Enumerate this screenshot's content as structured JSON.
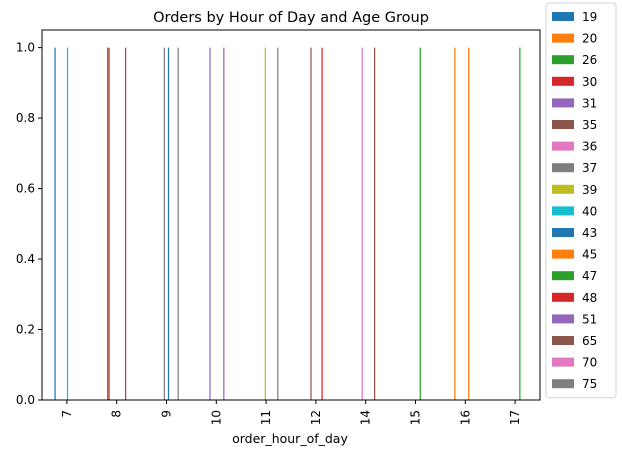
{
  "chart_data": {
    "type": "bar",
    "title": "Orders by Hour of Day and Age Group",
    "xlabel": "order_hour_of_day",
    "ylabel": "",
    "ylim": [
      0,
      1.05
    ],
    "yticks": [
      "0.0",
      "0.2",
      "0.4",
      "0.6",
      "0.8",
      "1.0"
    ],
    "categories": [
      "7",
      "8",
      "9",
      "10",
      "11",
      "12",
      "14",
      "15",
      "16",
      "17"
    ],
    "legend_placement": "outside-right",
    "grid": false,
    "series": [
      {
        "name": "19",
        "color": "#1f77b4",
        "values": [
          1,
          0,
          0,
          0,
          0,
          0,
          0,
          0,
          0,
          0
        ]
      },
      {
        "name": "20",
        "color": "#ff7f0e",
        "values": [
          0,
          0,
          0,
          0,
          0,
          0,
          0,
          0,
          1,
          0
        ]
      },
      {
        "name": "26",
        "color": "#2ca02c",
        "values": [
          0,
          1,
          0,
          0,
          0,
          0,
          0,
          0,
          0,
          0
        ]
      },
      {
        "name": "30",
        "color": "#d62728",
        "values": [
          0,
          1,
          0,
          0,
          0,
          0,
          0,
          0,
          0,
          0
        ]
      },
      {
        "name": "31",
        "color": "#9467bd",
        "values": [
          0,
          0,
          0,
          1,
          0,
          0,
          0,
          0,
          0,
          0
        ]
      },
      {
        "name": "35",
        "color": "#8c564b",
        "values": [
          0,
          0,
          0,
          0,
          0,
          1,
          0,
          0,
          0,
          0
        ]
      },
      {
        "name": "36",
        "color": "#e377c2",
        "values": [
          0,
          0,
          0,
          0,
          0,
          0,
          1,
          0,
          0,
          0
        ]
      },
      {
        "name": "37",
        "color": "#7f7f7f",
        "values": [
          0,
          0,
          1,
          0,
          0,
          0,
          0,
          0,
          0,
          0
        ]
      },
      {
        "name": "39",
        "color": "#bcbd22",
        "values": [
          0,
          0,
          0,
          0,
          1,
          0,
          0,
          0,
          0,
          0
        ]
      },
      {
        "name": "40",
        "color": "#17becf",
        "values": [
          1,
          0,
          0,
          0,
          0,
          0,
          0,
          0,
          0,
          0
        ]
      },
      {
        "name": "43",
        "color": "#1f77b4",
        "values": [
          0,
          0,
          1,
          0,
          0,
          0,
          0,
          0,
          0,
          0
        ]
      },
      {
        "name": "45",
        "color": "#ff7f0e",
        "values": [
          0,
          0,
          0,
          0,
          0,
          0,
          0,
          0,
          1,
          0
        ]
      },
      {
        "name": "47",
        "color": "#2ca02c",
        "values": [
          0,
          0,
          0,
          0,
          0,
          0,
          0,
          1,
          0,
          1
        ]
      },
      {
        "name": "48",
        "color": "#d62728",
        "values": [
          0,
          0,
          0,
          0,
          0,
          1,
          0,
          0,
          0,
          0
        ]
      },
      {
        "name": "51",
        "color": "#9467bd",
        "values": [
          0,
          0,
          0,
          1,
          0,
          0,
          0,
          0,
          0,
          0
        ]
      },
      {
        "name": "65",
        "color": "#8c564b",
        "values": [
          0,
          1,
          0,
          0,
          0,
          0,
          1,
          0,
          0,
          0
        ]
      },
      {
        "name": "70",
        "color": "#e377c2",
        "values": [
          0,
          0,
          0,
          0,
          0,
          0,
          0,
          0,
          0,
          0
        ]
      },
      {
        "name": "75",
        "color": "#7f7f7f",
        "values": [
          0,
          0,
          1,
          0,
          1,
          0,
          0,
          0,
          0,
          0
        ]
      }
    ]
  }
}
